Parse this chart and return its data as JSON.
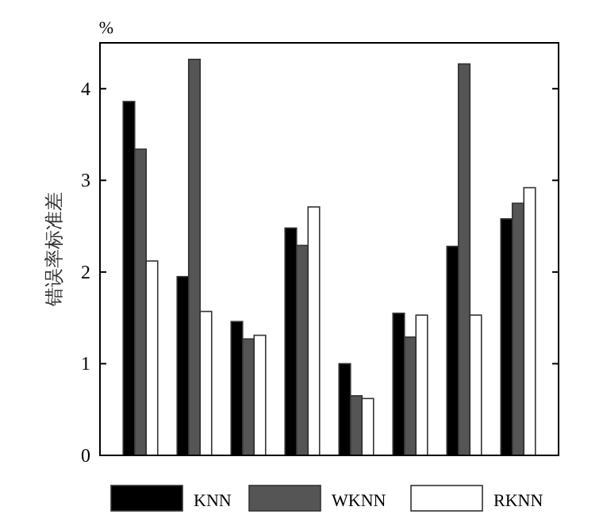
{
  "chart_data": {
    "type": "bar",
    "ylabel": "错误率标准差",
    "annotations": [
      "%"
    ],
    "categories": [
      null,
      null,
      null,
      null,
      null,
      null,
      null,
      null
    ],
    "series": [
      {
        "name": "KNN",
        "color": "#000000",
        "values": [
          3.86,
          1.95,
          1.46,
          2.48,
          1.0,
          1.55,
          2.28,
          2.58
        ]
      },
      {
        "name": "WKNN",
        "color": "#555555",
        "values": [
          3.34,
          4.32,
          1.27,
          2.29,
          0.65,
          1.29,
          4.27,
          2.75
        ]
      },
      {
        "name": "RKNN",
        "color": "#ffffff",
        "values": [
          2.12,
          1.57,
          1.31,
          2.71,
          0.62,
          1.53,
          1.53,
          2.92
        ]
      }
    ],
    "ylim": [
      0,
      4.5
    ],
    "yticks": [
      0,
      1,
      2,
      3,
      4
    ],
    "legend": "bottom",
    "grid": false
  }
}
